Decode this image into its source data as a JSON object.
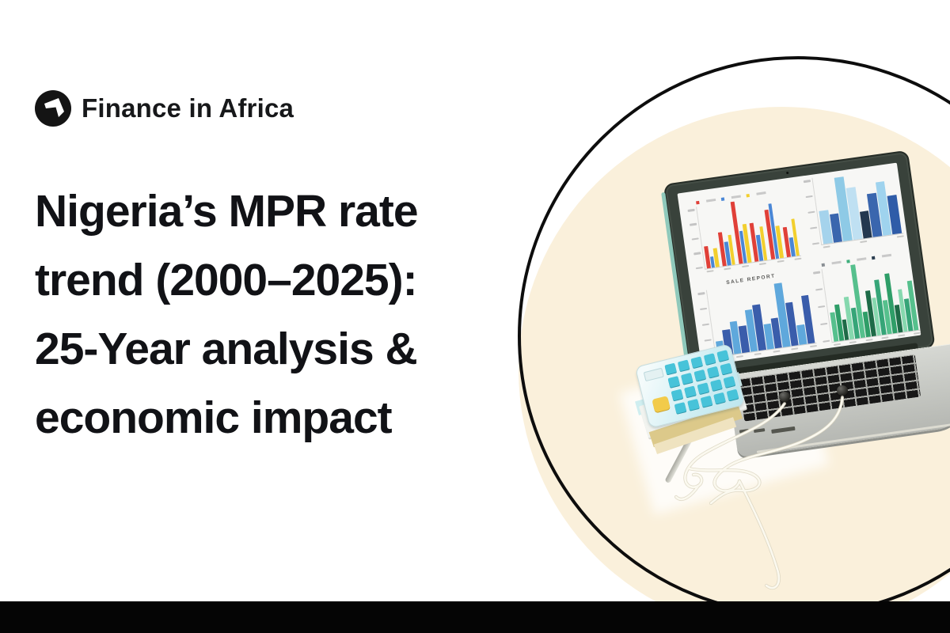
{
  "brand": {
    "name": "Finance in Africa",
    "logo_bg_color": "#141414",
    "logo_glyph_color": "#ffffff"
  },
  "headline": {
    "full_text": "Nigeria’s MPR rate trend (2000–2025): 25-Year analysis & economic impact",
    "lines": [
      "Nigeria’s MPR rate",
      "trend (2000–2025):",
      "25-Year analysis &",
      "economic impact"
    ],
    "color": "#111216"
  },
  "decor": {
    "circle_fill_color": "#faf0db",
    "circle_outline_color": "#0d0d0d",
    "bottom_bar_color": "#050505",
    "background_color": "#ffffff"
  },
  "illustration": {
    "objects": [
      "laptop-with-bar-charts",
      "calculator",
      "notebook-stack",
      "earphones",
      "pen"
    ],
    "laptop_bezel_color": "#39423b",
    "laptop_body_color": "#c7c9c4",
    "calculator_key_color": "#47c3d9",
    "calculator_accent_key_color": "#f2cb4a",
    "earphone_wire_color": "#fbf9ef",
    "earbud_color": "#23231f"
  },
  "chart_data": [
    {
      "type": "bar",
      "title": "",
      "position": "screen-top-left",
      "series": [
        {
          "name": "series-red",
          "color": "#e04038",
          "values": [
            35,
            55,
            100,
            62,
            80,
            48
          ]
        },
        {
          "name": "series-blue",
          "color": "#4a87d6",
          "values": [
            18,
            38,
            52,
            42,
            88,
            30
          ]
        },
        {
          "name": "series-yellow",
          "color": "#f2cf2e",
          "values": [
            30,
            48,
            62,
            55,
            52,
            60
          ]
        }
      ],
      "legend": [
        "#e04038",
        "#4a87d6",
        "#f2cf2e"
      ],
      "ylim": [
        0,
        100
      ],
      "grid": false
    },
    {
      "type": "bar",
      "title": "",
      "position": "screen-top-right",
      "values": [
        50,
        42,
        95,
        78,
        40,
        65,
        80,
        58
      ],
      "bar_colors": [
        "#a5d3ec",
        "#3a66ae",
        "#8ecae6",
        "#bfe0f2",
        "#24384f",
        "#3a66ae",
        "#9fd3ee",
        "#2f5ca8"
      ],
      "ylim": [
        0,
        100
      ],
      "grid": false
    },
    {
      "type": "bar",
      "title": "SALE REPORT",
      "position": "screen-bottom-left",
      "values": [
        22,
        38,
        48,
        40,
        62,
        68,
        38,
        45,
        95,
        65,
        30,
        72
      ],
      "bar_colors": [
        "#5fa8dc",
        "#3a5dab"
      ],
      "ylim": [
        0,
        100
      ],
      "grid": false
    },
    {
      "type": "bar",
      "title": "",
      "position": "screen-bottom-right",
      "values": [
        40,
        50,
        28,
        58,
        42,
        100,
        34,
        62,
        52,
        75,
        46,
        82,
        38,
        58,
        44,
        68
      ],
      "bar_colors": [
        "#56c08d",
        "#2f9e68",
        "#1e6b47",
        "#86d8ae",
        "#36a578"
      ],
      "legend": [
        "#8a8f94",
        "#3fae7c",
        "#2c3e50"
      ],
      "ylim": [
        0,
        100
      ],
      "grid": false
    }
  ]
}
